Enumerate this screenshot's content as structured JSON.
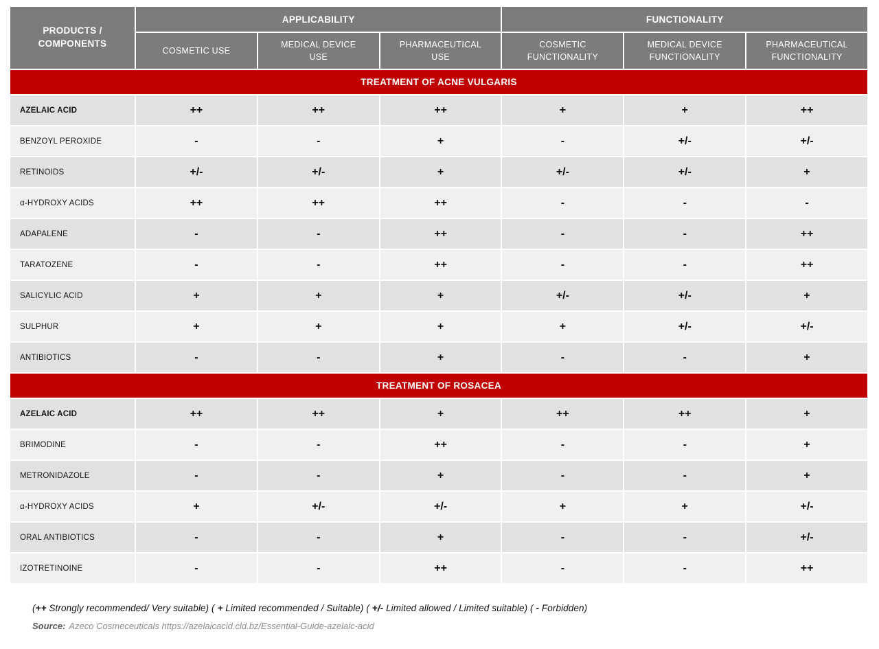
{
  "table": {
    "corner_header": "PRODUCTS /\nCOMPONENTS",
    "group_headers": [
      "APPLICABILITY",
      "FUNCTIONALITY"
    ],
    "column_headers": [
      "COSMETIC USE",
      "MEDICAL DEVICE\nUSE",
      "PHARMACEUTICAL\nUSE",
      "COSMETIC\nFUNCTIONALITY",
      "MEDICAL DEVICE\nFUNCTIONALITY",
      "PHARMACEUTICAL\nFUNCTIONALITY"
    ],
    "sections": [
      {
        "title": "TREATMENT OF ACNE VULGARIS",
        "rows": [
          {
            "label": "AZELAIC ACID",
            "bold": true,
            "cells": [
              "++",
              "++",
              "++",
              "+",
              "+",
              "++"
            ]
          },
          {
            "label": "BENZOYL PEROXIDE",
            "bold": false,
            "cells": [
              "-",
              "-",
              "+",
              "-",
              "+/-",
              "+/-"
            ]
          },
          {
            "label": "RETINOIDS",
            "bold": false,
            "cells": [
              "+/-",
              "+/-",
              "+",
              "+/-",
              "+/-",
              "+"
            ]
          },
          {
            "label": "α-HYDROXY ACIDS",
            "bold": false,
            "cells": [
              "++",
              "++",
              "++",
              "-",
              "-",
              "-"
            ]
          },
          {
            "label": "ADAPALENE",
            "bold": false,
            "cells": [
              "-",
              "-",
              "++",
              "-",
              "-",
              "++"
            ]
          },
          {
            "label": "TARATOZENE",
            "bold": false,
            "cells": [
              "-",
              "-",
              "++",
              "-",
              "-",
              "++"
            ]
          },
          {
            "label": "SALICYLIC ACID",
            "bold": false,
            "cells": [
              "+",
              "+",
              "+",
              "+/-",
              "+/-",
              "+"
            ]
          },
          {
            "label": "SULPHUR",
            "bold": false,
            "cells": [
              "+",
              "+",
              "+",
              "+",
              "+/-",
              "+/-"
            ]
          },
          {
            "label": "ANTIBIOTICS",
            "bold": false,
            "cells": [
              "-",
              "-",
              "+",
              "-",
              "-",
              "+"
            ]
          }
        ]
      },
      {
        "title": "TREATMENT OF ROSACEA",
        "rows": [
          {
            "label": "AZELAIC ACID",
            "bold": true,
            "cells": [
              "++",
              "++",
              "+",
              "++",
              "++",
              "+"
            ]
          },
          {
            "label": "BRIMODINE",
            "bold": false,
            "cells": [
              "-",
              "-",
              "++",
              "-",
              "-",
              "+"
            ]
          },
          {
            "label": "METRONIDAZOLE",
            "bold": false,
            "cells": [
              "-",
              "-",
              "+",
              "-",
              "-",
              "+"
            ]
          },
          {
            "label": "α-HYDROXY ACIDS",
            "bold": false,
            "cells": [
              "+",
              "+/-",
              "+/-",
              "+",
              "+",
              "+/-"
            ]
          },
          {
            "label": "ORAL ANTIBIOTICS",
            "bold": false,
            "cells": [
              "-",
              "-",
              "+",
              "-",
              "-",
              "+/-"
            ]
          },
          {
            "label": "IZOTRETINOINE",
            "bold": false,
            "cells": [
              "-",
              "-",
              "++",
              "-",
              "-",
              "++"
            ]
          }
        ]
      }
    ]
  },
  "legend": {
    "parts": [
      {
        "t": "(",
        "b": false
      },
      {
        "t": "++",
        "b": true
      },
      {
        "t": " Strongly recommended/ Very suitable) ( ",
        "b": false
      },
      {
        "t": "+",
        "b": true
      },
      {
        "t": " Limited recommended / Suitable) ( ",
        "b": false
      },
      {
        "t": "+/-",
        "b": true
      },
      {
        "t": " Limited allowed / Limited suitable) ( ",
        "b": false
      },
      {
        "t": "-",
        "b": true
      },
      {
        "t": " Forbidden)",
        "b": false
      }
    ]
  },
  "source": {
    "label": "Source:",
    "text": "Azeco Cosmeceuticals https://azelaicacid.cld.bz/Essential-Guide-azelaic-acid"
  },
  "colors": {
    "header_grey": "#7d7c7c",
    "band_red": "#c00000",
    "row_dark": "#e2e1e1",
    "row_light": "#f1f0f0"
  }
}
